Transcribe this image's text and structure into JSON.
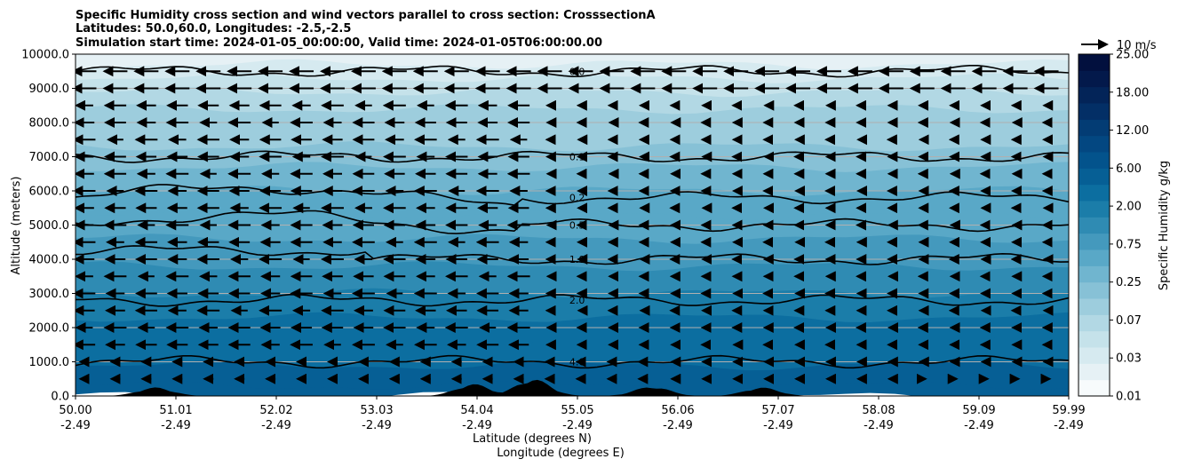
{
  "chart_data": {
    "type": "contour",
    "title_lines": [
      "Specific Humidity cross section and wind vectors parallel to cross section: CrosssectionA",
      "Latitudes: 50.0,60.0, Longitudes: -2.5,-2.5",
      "Simulation start time: 2024-01-05_00:00:00, Valid time: 2024-01-05T06:00:00.00"
    ],
    "ylabel": "Altitude (meters)",
    "xlabel_lat": "Latitude (degrees N)",
    "xlabel_lon": "Longitude (degrees E)",
    "ylim": [
      0,
      10000
    ],
    "xlim": [
      50.0,
      59.99
    ],
    "yticks": [
      {
        "value": 0,
        "label": "0.0"
      },
      {
        "value": 1000,
        "label": "1000.0"
      },
      {
        "value": 2000,
        "label": "2000.0"
      },
      {
        "value": 3000,
        "label": "3000.0"
      },
      {
        "value": 4000,
        "label": "4000.0"
      },
      {
        "value": 5000,
        "label": "5000.0"
      },
      {
        "value": 6000,
        "label": "6000.0"
      },
      {
        "value": 7000,
        "label": "7000.0"
      },
      {
        "value": 8000,
        "label": "8000.0"
      },
      {
        "value": 9000,
        "label": "9000.0"
      },
      {
        "value": 10000,
        "label": "10000.0"
      }
    ],
    "xticks": [
      {
        "lat": "50.00",
        "lon": "-2.49"
      },
      {
        "lat": "51.01",
        "lon": "-2.49"
      },
      {
        "lat": "52.02",
        "lon": "-2.49"
      },
      {
        "lat": "53.03",
        "lon": "-2.49"
      },
      {
        "lat": "54.04",
        "lon": "-2.49"
      },
      {
        "lat": "55.05",
        "lon": "-2.49"
      },
      {
        "lat": "56.06",
        "lon": "-2.49"
      },
      {
        "lat": "57.07",
        "lon": "-2.49"
      },
      {
        "lat": "58.08",
        "lon": "-2.49"
      },
      {
        "lat": "59.09",
        "lon": "-2.49"
      },
      {
        "lat": "59.99",
        "lon": "-2.49"
      }
    ],
    "colorbar": {
      "label": "Specific Humidity g/kg",
      "levels": [
        0.01,
        0.03,
        0.07,
        0.25,
        0.75,
        2.0,
        6.0,
        12.0,
        18.0,
        25.0
      ],
      "tick_labels": [
        "0.01",
        "0.03",
        "0.07",
        "0.25",
        "0.75",
        "2.00",
        "6.00",
        "12.00",
        "18.00",
        "25.00"
      ],
      "colors": [
        "#f7fbfc",
        "#e6f1f5",
        "#d6eaf0",
        "#c5e2ea",
        "#b2d8e4",
        "#9dcddd",
        "#87c1d6",
        "#70b5cf",
        "#59a8c7",
        "#4499bd",
        "#2f8bb3",
        "#1b7da9",
        "#0c6ea0",
        "#065f95",
        "#03538c",
        "#034781",
        "#033c74",
        "#032f66",
        "#032458",
        "#03194b",
        "#02103e"
      ]
    },
    "contour_lines": [
      {
        "level": "0.0",
        "label": "0.0",
        "approx_altitude_m": 9500
      },
      {
        "level": "0.1",
        "label": "0.1",
        "approx_altitude_m": 7000
      },
      {
        "level": "0.2",
        "label": "0.2",
        "approx_altitude_m": 5800
      },
      {
        "level": "0.5",
        "label": "0.5",
        "approx_altitude_m": 5000
      },
      {
        "level": "1.0",
        "label": "1.0",
        "approx_altitude_m": 4000
      },
      {
        "level": "2.0",
        "label": "2.0",
        "approx_altitude_m": 2800
      },
      {
        "level": "4.0",
        "label": "4.0",
        "approx_altitude_m": 1000
      }
    ],
    "terrain_peaks_m": [
      {
        "lat": 50.8,
        "height": 250
      },
      {
        "lat": 54.0,
        "height": 350
      },
      {
        "lat": 54.6,
        "height": 500
      },
      {
        "lat": 55.8,
        "height": 280
      },
      {
        "lat": 56.9,
        "height": 250
      }
    ],
    "wind_vectors": {
      "reference_label": "10 m/s",
      "direction": "southward (parallel to cross section)",
      "levels_m": [
        500,
        1000,
        1500,
        2000,
        2500,
        3000,
        3500,
        4000,
        4500,
        5000,
        5500,
        6000,
        6500,
        7000,
        7500,
        8000,
        8500,
        9000,
        9500
      ]
    }
  }
}
